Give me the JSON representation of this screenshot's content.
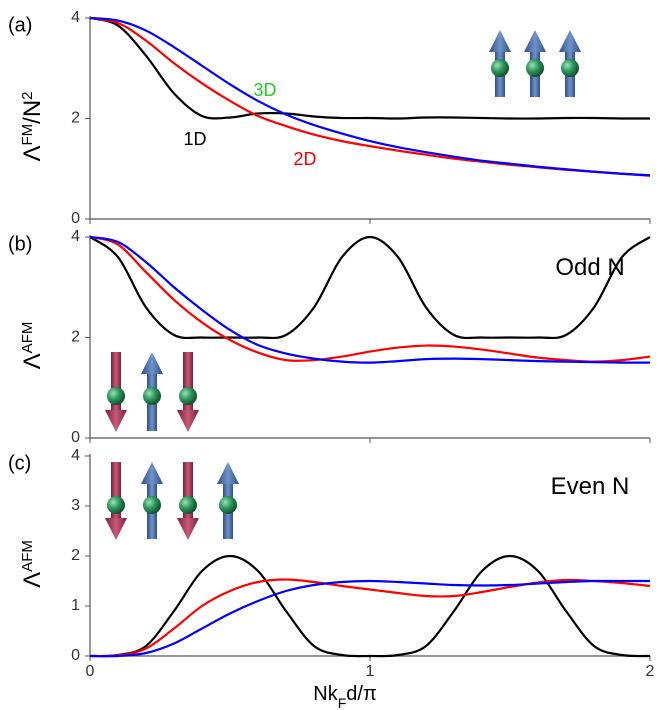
{
  "chart_data": [
    {
      "type": "line",
      "panel_label": "(a)",
      "ylabel": [
        {
          "text": "Λ"
        },
        {
          "text": "FM",
          "sup": true
        },
        {
          "text": "/N"
        },
        {
          "text": "2",
          "sup": true
        }
      ],
      "x": [
        0,
        0.1,
        0.2,
        0.3,
        0.4,
        0.5,
        0.6,
        0.7,
        0.8,
        0.9,
        1.0,
        1.1,
        1.2,
        1.3,
        1.4,
        1.5,
        1.6,
        1.7,
        1.8,
        1.9,
        2.0
      ],
      "xlim": [
        0,
        2
      ],
      "ylim": [
        0,
        4
      ],
      "yticks": [
        0,
        2,
        4
      ],
      "series": [
        {
          "name": "1D",
          "color": "#000000",
          "values": [
            4,
            3.85,
            3.25,
            2.5,
            2.05,
            2.02,
            2.1,
            2.1,
            2.04,
            2.01,
            2.01,
            2.0,
            2.02,
            2.02,
            2.01,
            2.0,
            2.0,
            2.01,
            2.01,
            2.0,
            2.0
          ]
        },
        {
          "name": "2D",
          "color": "#ff0000",
          "values": [
            4,
            3.9,
            3.55,
            3.1,
            2.7,
            2.35,
            2.05,
            1.85,
            1.68,
            1.55,
            1.45,
            1.36,
            1.28,
            1.2,
            1.14,
            1.08,
            1.03,
            0.98,
            0.94,
            0.9,
            0.86
          ]
        },
        {
          "name": "3D",
          "color": "#0000ff",
          "values": [
            4,
            3.95,
            3.75,
            3.42,
            3.05,
            2.68,
            2.35,
            2.08,
            1.87,
            1.7,
            1.55,
            1.43,
            1.33,
            1.24,
            1.16,
            1.1,
            1.04,
            0.99,
            0.94,
            0.9,
            0.87
          ]
        }
      ]
    },
    {
      "type": "line",
      "panel_label": "(b)",
      "annotation": "Odd N",
      "ylabel": [
        {
          "text": "Λ"
        },
        {
          "text": "AFM",
          "sup": true
        }
      ],
      "x": [
        0,
        0.1,
        0.2,
        0.3,
        0.4,
        0.5,
        0.6,
        0.7,
        0.8,
        0.9,
        1.0,
        1.1,
        1.2,
        1.3,
        1.4,
        1.5,
        1.6,
        1.7,
        1.8,
        1.9,
        2.0
      ],
      "xlim": [
        0,
        2
      ],
      "ylim": [
        0,
        4
      ],
      "yticks": [
        0,
        2,
        4
      ],
      "series": [
        {
          "color": "#000000",
          "values": [
            4,
            3.6,
            2.6,
            2.05,
            2.0,
            2.0,
            2.0,
            2.05,
            2.6,
            3.6,
            4,
            3.6,
            2.6,
            2.05,
            2.0,
            2.0,
            2.0,
            2.05,
            2.6,
            3.6,
            4
          ]
        },
        {
          "color": "#ff0000",
          "values": [
            4,
            3.85,
            3.3,
            2.75,
            2.3,
            1.95,
            1.7,
            1.55,
            1.55,
            1.62,
            1.72,
            1.8,
            1.84,
            1.82,
            1.76,
            1.68,
            1.6,
            1.55,
            1.52,
            1.55,
            1.62
          ]
        },
        {
          "color": "#0000ff",
          "values": [
            4,
            3.9,
            3.5,
            3.0,
            2.55,
            2.15,
            1.85,
            1.68,
            1.58,
            1.52,
            1.5,
            1.53,
            1.57,
            1.58,
            1.57,
            1.55,
            1.53,
            1.52,
            1.51,
            1.5,
            1.5
          ]
        }
      ]
    },
    {
      "type": "line",
      "panel_label": "(c)",
      "annotation": "Even N",
      "ylabel": [
        {
          "text": "Λ"
        },
        {
          "text": "AFM",
          "sup": true
        }
      ],
      "xlabel": [
        {
          "text": "Nk"
        },
        {
          "text": "F",
          "sub": true
        },
        {
          "text": "d/π"
        }
      ],
      "x": [
        0,
        0.1,
        0.2,
        0.3,
        0.4,
        0.5,
        0.6,
        0.7,
        0.8,
        0.9,
        1.0,
        1.1,
        1.2,
        1.3,
        1.4,
        1.5,
        1.6,
        1.7,
        1.8,
        1.9,
        2.0
      ],
      "xlim": [
        0,
        2
      ],
      "xticks": [
        0,
        1,
        2
      ],
      "ylim": [
        0,
        4
      ],
      "yticks": [
        0,
        1,
        2,
        3,
        4
      ],
      "series": [
        {
          "color": "#000000",
          "values": [
            0,
            0.02,
            0.2,
            0.9,
            1.7,
            2.0,
            1.7,
            0.9,
            0.2,
            0.02,
            0,
            0.02,
            0.2,
            0.9,
            1.7,
            2.0,
            1.7,
            0.9,
            0.2,
            0.02,
            0
          ]
        },
        {
          "color": "#ff0000",
          "values": [
            0,
            0.01,
            0.15,
            0.55,
            1.0,
            1.3,
            1.48,
            1.53,
            1.48,
            1.4,
            1.33,
            1.26,
            1.2,
            1.2,
            1.28,
            1.38,
            1.47,
            1.52,
            1.5,
            1.46,
            1.4
          ]
        },
        {
          "color": "#0000ff",
          "values": [
            0,
            0.0,
            0.06,
            0.25,
            0.55,
            0.85,
            1.1,
            1.3,
            1.42,
            1.48,
            1.5,
            1.48,
            1.45,
            1.42,
            1.41,
            1.42,
            1.45,
            1.48,
            1.5,
            1.5,
            1.5
          ]
        }
      ]
    }
  ]
}
